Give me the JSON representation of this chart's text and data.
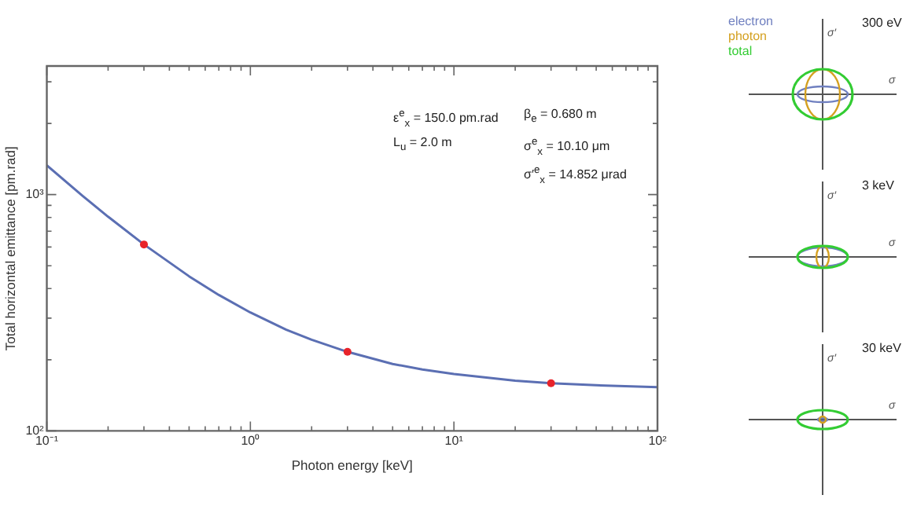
{
  "chart_data": [
    {
      "type": "line",
      "xlabel": "Photon energy [keV]",
      "ylabel": "Total horizontal emittance [pm.rad]",
      "log": "xy",
      "xlim": [
        0.1,
        100
      ],
      "ylim": [
        100,
        3500
      ],
      "xticks": [
        {
          "value": 0.1,
          "label": "10⁻¹"
        },
        {
          "value": 0.2,
          "label": null
        },
        {
          "value": 0.3,
          "label": null
        },
        {
          "value": 0.4,
          "label": null
        },
        {
          "value": 0.5,
          "label": null
        },
        {
          "value": 0.6,
          "label": null
        },
        {
          "value": 0.7,
          "label": null
        },
        {
          "value": 0.8,
          "label": null
        },
        {
          "value": 0.9,
          "label": null
        },
        {
          "value": 1,
          "label": "10⁰"
        },
        {
          "value": 2,
          "label": null
        },
        {
          "value": 3,
          "label": null
        },
        {
          "value": 4,
          "label": null
        },
        {
          "value": 5,
          "label": null
        },
        {
          "value": 6,
          "label": null
        },
        {
          "value": 7,
          "label": null
        },
        {
          "value": 8,
          "label": null
        },
        {
          "value": 9,
          "label": null
        },
        {
          "value": 10,
          "label": "10¹"
        },
        {
          "value": 20,
          "label": null
        },
        {
          "value": 30,
          "label": null
        },
        {
          "value": 40,
          "label": null
        },
        {
          "value": 50,
          "label": null
        },
        {
          "value": 60,
          "label": null
        },
        {
          "value": 70,
          "label": null
        },
        {
          "value": 80,
          "label": null
        },
        {
          "value": 90,
          "label": null
        },
        {
          "value": 100,
          "label": "10²"
        }
      ],
      "yticks": [
        {
          "value": 100,
          "label": "10²"
        },
        {
          "value": 200,
          "label": null
        },
        {
          "value": 300,
          "label": null
        },
        {
          "value": 400,
          "label": null
        },
        {
          "value": 500,
          "label": null
        },
        {
          "value": 600,
          "label": null
        },
        {
          "value": 700,
          "label": null
        },
        {
          "value": 800,
          "label": null
        },
        {
          "value": 900,
          "label": null
        },
        {
          "value": 1000,
          "label": "10³"
        },
        {
          "value": 2000,
          "label": null
        },
        {
          "value": 3000,
          "label": null
        }
      ],
      "series": [
        {
          "type": "line",
          "color": "#5b6fb3",
          "x": [
            0.1,
            0.15,
            0.2,
            0.3,
            0.5,
            0.7,
            1,
            1.5,
            2,
            3,
            5,
            7,
            10,
            20,
            30,
            50,
            100
          ],
          "values": [
            1330,
            987,
            806,
            615,
            451,
            376,
            317,
            268,
            243,
            216,
            192,
            182,
            174,
            163,
            159,
            156,
            153
          ]
        },
        {
          "type": "scatter",
          "marker": "circle",
          "color": "#e8232a",
          "x": [
            0.3,
            3,
            30
          ],
          "values": [
            615,
            216,
            159
          ]
        }
      ],
      "annotations": [
        "ε$^{e}$$_{x}$ = 150.0 pm.rad",
        "β$_{e}$ = 0.680 m",
        "L$_{u}$ = 2.0 m",
        "σ$^{e}$$_{x}$ = 10.10 μm",
        "σ′$^{e}$$_{x}$ = 14.852 μrad"
      ]
    },
    {
      "type": "other",
      "xlabel": "σ",
      "ylabel": "σ′",
      "series": [
        {
          "name": "electron",
          "color": "#7080c0"
        },
        {
          "name": "photon",
          "color": "#d4a020"
        },
        {
          "name": "total",
          "color": "#33cc33"
        }
      ],
      "annotations": [
        "300 eV",
        "3 keV",
        "30 keV"
      ]
    }
  ]
}
